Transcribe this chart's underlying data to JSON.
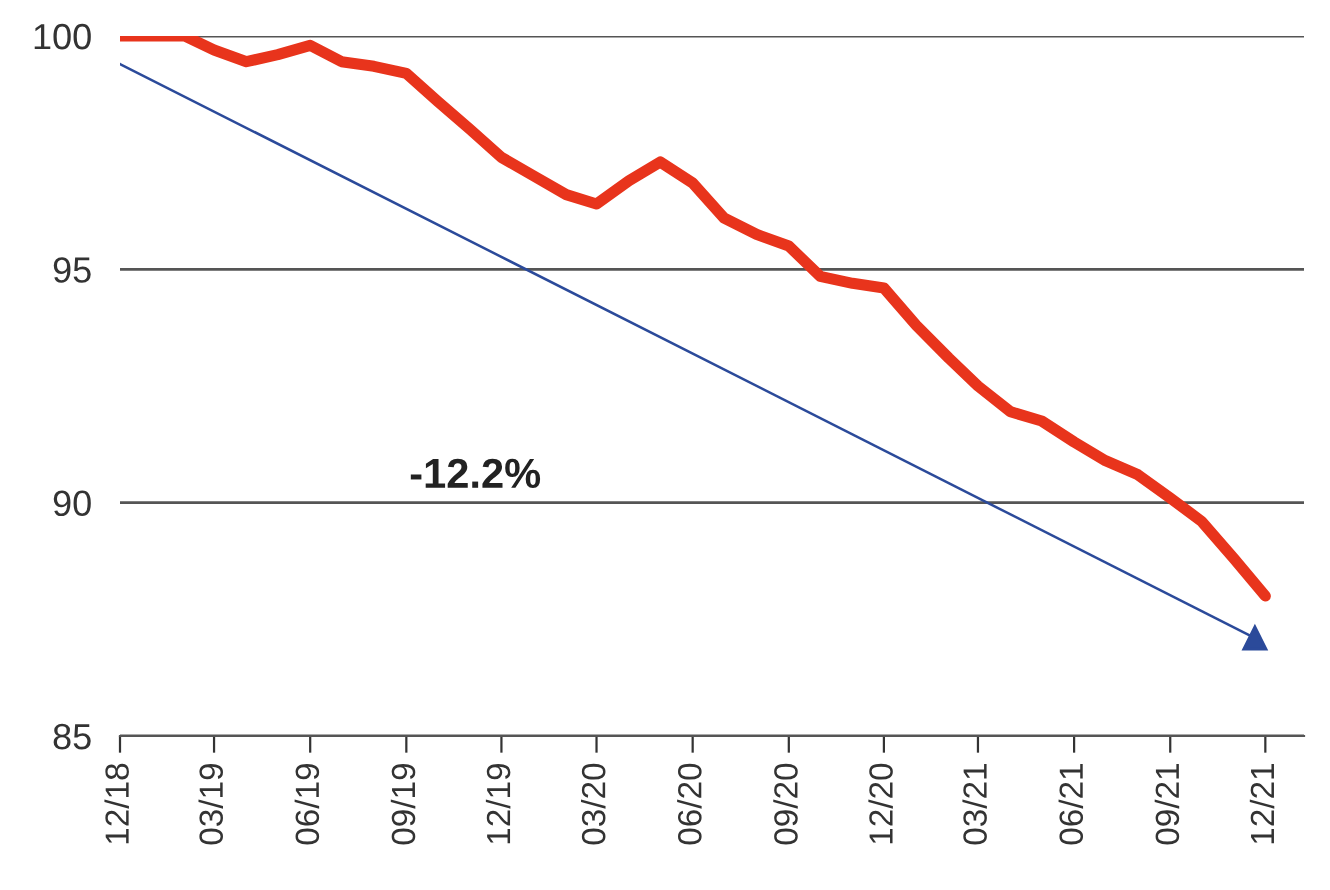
{
  "chart_data": {
    "type": "line",
    "x": [
      "2018-12",
      "2019-01",
      "2019-02",
      "2019-03",
      "2019-04",
      "2019-05",
      "2019-06",
      "2019-07",
      "2019-08",
      "2019-09",
      "2019-10",
      "2019-11",
      "2019-12",
      "2020-01",
      "2020-02",
      "2020-03",
      "2020-04",
      "2020-05",
      "2020-06",
      "2020-07",
      "2020-08",
      "2020-09",
      "2020-10",
      "2020-11",
      "2020-12",
      "2021-01",
      "2021-02",
      "2021-03",
      "2021-04",
      "2021-05",
      "2021-06",
      "2021-07",
      "2021-08",
      "2021-09",
      "2021-10",
      "2021-11",
      "2021-12"
    ],
    "series": [
      {
        "color": "#e8341c",
        "values": [
          100,
          100,
          100,
          99.7,
          99.45,
          99.6,
          99.8,
          99.45,
          99.35,
          99.2,
          98.6,
          98.0,
          97.4,
          97.0,
          96.6,
          96.4,
          96.9,
          97.3,
          96.85,
          96.1,
          95.75,
          95.5,
          94.85,
          94.7,
          94.6,
          93.8,
          93.1,
          92.5,
          91.95,
          91.75,
          91.3,
          90.9,
          90.6,
          90.1,
          89.6,
          88.8,
          88.0
        ]
      },
      {
        "type": "line",
        "color": "#2b4a9a",
        "x": [
          "2018-12-01",
          "2021-11-21"
        ],
        "values": [
          99.4,
          87.1
        ],
        "marker": "triangle"
      }
    ],
    "ylim": [
      85,
      100
    ],
    "yticks": [
      85,
      90,
      95,
      100
    ],
    "xlim": [
      "2018-12-01",
      "2022-01-07"
    ],
    "xticks": [
      {
        "value": "2018-12",
        "label": "12/18"
      },
      {
        "value": "2019-03",
        "label": "03/19"
      },
      {
        "value": "2019-06",
        "label": "06/19"
      },
      {
        "value": "2019-09",
        "label": "09/19"
      },
      {
        "value": "2019-12",
        "label": "12/19"
      },
      {
        "value": "2020-03",
        "label": "03/20"
      },
      {
        "value": "2020-06",
        "label": "06/20"
      },
      {
        "value": "2020-09",
        "label": "09/20"
      },
      {
        "value": "2020-12",
        "label": "12/20"
      },
      {
        "value": "2021-03",
        "label": "03/21"
      },
      {
        "value": "2021-06",
        "label": "06/21"
      },
      {
        "value": "2021-09",
        "label": "09/21"
      },
      {
        "value": "2021-12",
        "label": "12/21"
      }
    ],
    "grid": "y",
    "annotations": [
      "-12.2%"
    ]
  }
}
